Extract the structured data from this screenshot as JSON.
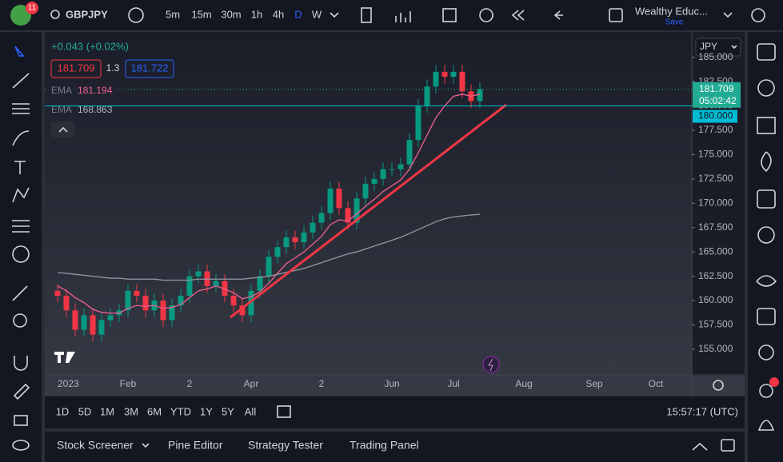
{
  "toolbar": {
    "badge": "11",
    "symbol": "GBPJPY",
    "intervals": [
      "5m",
      "15m",
      "30m",
      "1h",
      "4h",
      "D",
      "W"
    ],
    "layout_name": "Wealthy Educ...",
    "save": "Save"
  },
  "chart_data": {
    "type": "candlestick",
    "change": "+0.043 (+0.02%)",
    "bid": 181.709,
    "spread": 1.3,
    "ask": 181.722,
    "currency": "JPY",
    "countdown": "05:02:42",
    "hline": {
      "value": 180,
      "label": "180.000"
    },
    "up_color": "#089981",
    "down_color": "#f23645",
    "categories": [
      "2023",
      null,
      null,
      null,
      null,
      null,
      null,
      null,
      "Feb",
      null,
      null,
      null,
      null,
      null,
      null,
      "2",
      null,
      null,
      null,
      null,
      null,
      null,
      "Apr",
      null,
      null,
      null,
      null,
      null,
      null,
      null,
      "2",
      null,
      null,
      null,
      null,
      null,
      null,
      null,
      "Jun",
      null,
      null,
      null,
      null,
      null,
      null,
      "Jul",
      null,
      null,
      null,
      null,
      null,
      null,
      null,
      "Aug",
      null,
      null,
      null,
      null,
      null,
      null,
      null,
      "Sep",
      null,
      null,
      null,
      null,
      null,
      null,
      "Oct",
      null,
      null,
      null
    ],
    "open": [
      161.0,
      160.5,
      159.0,
      157.0,
      158.5,
      156.5,
      158.0,
      158.5,
      159.0,
      161.0,
      160.5,
      159.0,
      160.0,
      158.0,
      159.5,
      160.5,
      162.5,
      163.0,
      161.5,
      162.0,
      160.5,
      159.5,
      158.5,
      161.0,
      162.5,
      164.5,
      165.5,
      166.5,
      166.0,
      167.0,
      168.0,
      169.0,
      171.5,
      169.5,
      168.0,
      170.5,
      172.0,
      172.5,
      173.5,
      173.5,
      174.0,
      176.5,
      180.0,
      182.0,
      183.5,
      183.0,
      183.5,
      181.5,
      180.5,
      null,
      null,
      null,
      null,
      null,
      null,
      null,
      null,
      null,
      null,
      null,
      null,
      null,
      null,
      null,
      null,
      null,
      null,
      null,
      null,
      null,
      null,
      null
    ],
    "high": [
      161.7,
      161.2,
      159.7,
      159.2,
      159.2,
      158.7,
      159.2,
      159.7,
      161.7,
      161.7,
      161.2,
      160.7,
      160.7,
      160.2,
      161.2,
      163.2,
      163.7,
      163.7,
      162.7,
      162.7,
      161.2,
      160.2,
      161.7,
      163.2,
      165.2,
      166.2,
      167.2,
      167.2,
      167.7,
      168.7,
      169.7,
      172.2,
      172.2,
      170.2,
      171.2,
      172.7,
      173.2,
      174.2,
      174.2,
      174.7,
      177.2,
      180.7,
      182.7,
      184.2,
      184.2,
      184.2,
      184.2,
      182.2,
      182.4,
      null,
      null,
      null,
      null,
      null,
      null,
      null,
      null,
      null,
      null,
      null,
      null,
      null,
      null,
      null,
      null,
      null,
      null,
      null,
      null,
      null,
      null,
      null
    ],
    "low": [
      159.8,
      158.3,
      156.3,
      156.3,
      155.8,
      155.8,
      157.3,
      157.8,
      158.3,
      159.8,
      158.3,
      158.3,
      157.3,
      157.3,
      158.8,
      159.8,
      161.8,
      160.8,
      160.8,
      159.8,
      158.8,
      157.8,
      157.8,
      160.3,
      161.8,
      163.8,
      164.8,
      165.3,
      165.3,
      166.3,
      167.3,
      168.3,
      168.8,
      167.3,
      167.3,
      169.8,
      171.3,
      171.8,
      172.8,
      172.8,
      173.3,
      175.8,
      179.3,
      181.3,
      182.3,
      182.3,
      180.8,
      179.8,
      179.8,
      null,
      null,
      null,
      null,
      null,
      null,
      null,
      null,
      null,
      null,
      null,
      null,
      null,
      null,
      null,
      null,
      null,
      null,
      null,
      null,
      null,
      null,
      null
    ],
    "close": [
      160.5,
      159.0,
      157.0,
      158.5,
      156.5,
      158.0,
      158.5,
      159.0,
      161.0,
      160.5,
      159.0,
      160.0,
      158.0,
      159.5,
      160.5,
      162.5,
      163.0,
      161.5,
      162.0,
      160.5,
      159.5,
      158.5,
      161.0,
      162.5,
      164.5,
      165.5,
      166.5,
      166.0,
      167.0,
      168.0,
      169.0,
      171.5,
      169.5,
      168.0,
      170.5,
      172.0,
      172.5,
      173.5,
      173.5,
      174.0,
      176.5,
      180.0,
      182.0,
      183.5,
      183.0,
      183.5,
      181.5,
      180.5,
      181.709,
      null,
      null,
      null,
      null,
      null,
      null,
      null,
      null,
      null,
      null,
      null,
      null,
      null,
      null,
      null,
      null,
      null,
      null,
      null,
      null,
      null,
      null,
      null
    ],
    "series": [
      {
        "name": "EMA",
        "color": "#f06292",
        "values": [
          161.5,
          161.0,
          160.3,
          159.8,
          159.1,
          158.8,
          158.7,
          158.7,
          159.2,
          159.5,
          159.4,
          159.5,
          159.2,
          159.3,
          159.6,
          160.3,
          161.0,
          161.2,
          161.5,
          161.2,
          160.8,
          160.2,
          160.4,
          160.9,
          161.8,
          162.8,
          163.8,
          164.4,
          165.0,
          165.8,
          166.6,
          167.8,
          168.3,
          168.2,
          168.9,
          169.7,
          170.4,
          171.2,
          171.8,
          172.4,
          173.5,
          175.2,
          177.0,
          178.8,
          180.0,
          181.0,
          181.2,
          181.0,
          181.194,
          null,
          null,
          null,
          null,
          null,
          null,
          null,
          null,
          null,
          null,
          null,
          null,
          null,
          null,
          null,
          null,
          null,
          null,
          null,
          null,
          null,
          null,
          null
        ]
      },
      {
        "name": "EMA",
        "color": "#9598a1",
        "values": [
          162.9,
          162.8,
          162.7,
          162.6,
          162.5,
          162.4,
          162.3,
          162.3,
          162.2,
          162.2,
          162.2,
          162.2,
          162.1,
          162.1,
          162.1,
          162.1,
          162.2,
          162.2,
          162.2,
          162.2,
          162.2,
          162.2,
          162.3,
          162.4,
          162.5,
          162.7,
          162.9,
          163.1,
          163.3,
          163.6,
          163.9,
          164.2,
          164.5,
          164.8,
          165.0,
          165.3,
          165.6,
          165.9,
          166.2,
          166.5,
          166.9,
          167.3,
          167.7,
          168.1,
          168.4,
          168.6,
          168.7,
          168.8,
          168.863,
          null,
          null,
          null,
          null,
          null,
          null,
          null,
          null,
          null,
          null,
          null,
          null,
          null,
          null,
          null,
          null,
          null,
          null,
          null,
          null,
          null,
          null,
          null
        ]
      }
    ],
    "ylim": [
      152.45,
      187.6
    ],
    "yticks": [
      {
        "value": 155,
        "label": "155.000"
      },
      {
        "value": 157.5,
        "label": "157.500"
      },
      {
        "value": 160,
        "label": "160.000"
      },
      {
        "value": 162.5,
        "label": "162.500"
      },
      {
        "value": 165,
        "label": "165.000"
      },
      {
        "value": 167.5,
        "label": "167.500"
      },
      {
        "value": 170,
        "label": "170.000"
      },
      {
        "value": 172.5,
        "label": "172.500"
      },
      {
        "value": 175,
        "label": "175.000"
      },
      {
        "value": 177.5,
        "label": "177.500"
      },
      {
        "value": 180,
        "label": "180.000"
      },
      {
        "value": 182.5,
        "label": "182.500"
      },
      {
        "value": 185,
        "label": "185.000"
      }
    ]
  },
  "range_bar": {
    "ranges": [
      "1D",
      "5D",
      "1M",
      "3M",
      "6M",
      "YTD",
      "1Y",
      "5Y",
      "All"
    ],
    "clock": "15:57:17 (UTC)"
  },
  "bottom_panel": {
    "tabs": [
      "Stock Screener",
      "Pine Editor",
      "Strategy Tester",
      "Trading Panel"
    ]
  }
}
